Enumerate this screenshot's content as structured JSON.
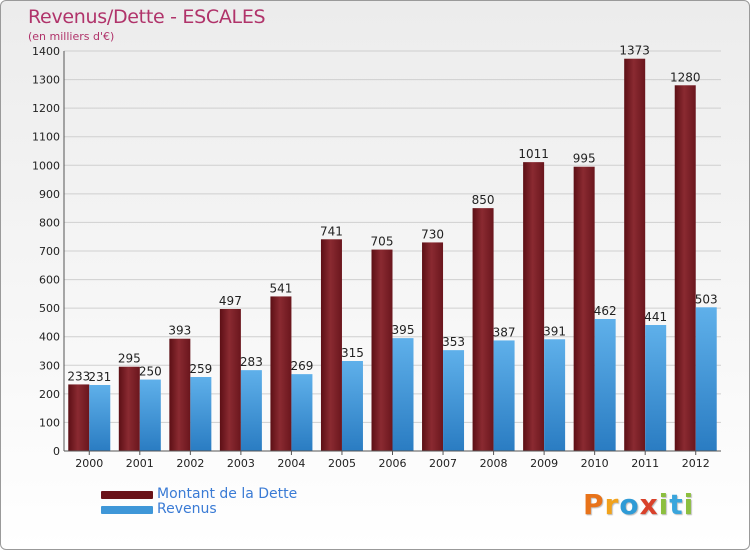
{
  "title": "Revenus/Dette - ESCALES",
  "subtitle": "(en milliers d'€)",
  "brand": "Proxiti",
  "colors": {
    "dette": "#7a1c22",
    "revenus": "#3f97d8",
    "title": "#b0336a",
    "legend_text": "#3a7bd5"
  },
  "chart_data": {
    "type": "bar",
    "title": "Revenus/Dette - ESCALES",
    "subtitle": "(en milliers d'€)",
    "categories": [
      "2000",
      "2001",
      "2002",
      "2003",
      "2004",
      "2005",
      "2006",
      "2007",
      "2008",
      "2009",
      "2010",
      "2011",
      "2012"
    ],
    "series": [
      {
        "name": "Montant de la Dette",
        "values": [
          233,
          295,
          393,
          497,
          541,
          741,
          705,
          730,
          850,
          1011,
          995,
          1373,
          1280
        ]
      },
      {
        "name": "Revenus",
        "values": [
          231,
          250,
          259,
          283,
          269,
          315,
          395,
          353,
          387,
          391,
          462,
          441,
          503
        ]
      }
    ],
    "ylim": [
      0,
      1400
    ],
    "yticks": [
      0,
      100,
      200,
      300,
      400,
      500,
      600,
      700,
      800,
      900,
      1000,
      1100,
      1200,
      1300,
      1400
    ],
    "grid": true,
    "legend_position": "bottom-left"
  }
}
